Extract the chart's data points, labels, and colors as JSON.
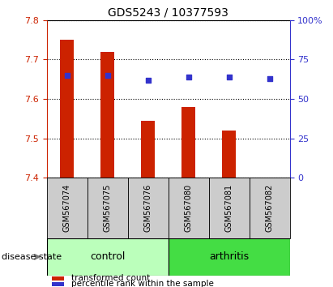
{
  "title": "GDS5243 / 10377593",
  "samples": [
    "GSM567074",
    "GSM567075",
    "GSM567076",
    "GSM567080",
    "GSM567081",
    "GSM567082"
  ],
  "transformed_count": [
    7.75,
    7.72,
    7.545,
    7.58,
    7.52,
    7.402
  ],
  "percentile_rank": [
    65,
    65,
    62,
    64,
    64,
    63
  ],
  "bar_bottom": 7.4,
  "ylim_left": [
    7.4,
    7.8
  ],
  "ylim_right": [
    0,
    100
  ],
  "yticks_left": [
    7.4,
    7.5,
    7.6,
    7.7,
    7.8
  ],
  "yticks_right": [
    0,
    25,
    50,
    75,
    100
  ],
  "bar_color": "#cc2200",
  "dot_color": "#3333cc",
  "control_color": "#bbffbb",
  "arthritis_color": "#44dd44",
  "label_bg_color": "#cccccc",
  "disease_label": "disease state",
  "control_label": "control",
  "arthritis_label": "arthritis",
  "legend_bar_label": "transformed count",
  "legend_dot_label": "percentile rank within the sample",
  "title_fontsize": 10,
  "tick_fontsize": 8,
  "sample_fontsize": 7,
  "legend_fontsize": 7.5,
  "disease_fontsize": 8,
  "group_fontsize": 9
}
